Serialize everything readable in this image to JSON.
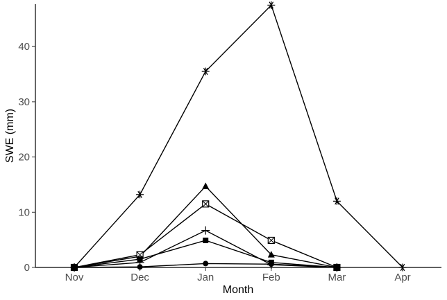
{
  "chart_data": {
    "type": "line",
    "title": "",
    "xlabel": "Month",
    "ylabel": "SWE (mm)",
    "categories": [
      "Nov",
      "Dec",
      "Jan",
      "Feb",
      "Mar",
      "Apr"
    ],
    "ylim": [
      0,
      47.5
    ],
    "yticks": [
      0,
      10,
      20,
      30,
      40
    ],
    "grid": false,
    "legend": "none",
    "series": [
      {
        "marker": "asterisk",
        "values": [
          0,
          13.2,
          35.5,
          47.5,
          12.0,
          0
        ]
      },
      {
        "marker": "triangle-filled",
        "values": [
          0,
          2.0,
          14.7,
          2.3,
          0,
          null
        ]
      },
      {
        "marker": "square-crossed",
        "values": [
          0,
          2.3,
          11.5,
          4.9,
          0,
          null
        ]
      },
      {
        "marker": "plus",
        "values": [
          0,
          0.9,
          6.7,
          0.5,
          0,
          null
        ]
      },
      {
        "marker": "square-filled",
        "values": [
          0,
          1.5,
          4.9,
          0.9,
          0,
          null
        ]
      },
      {
        "marker": "circle-filled",
        "values": [
          0,
          0.1,
          0.7,
          0.6,
          0,
          null
        ]
      }
    ]
  }
}
